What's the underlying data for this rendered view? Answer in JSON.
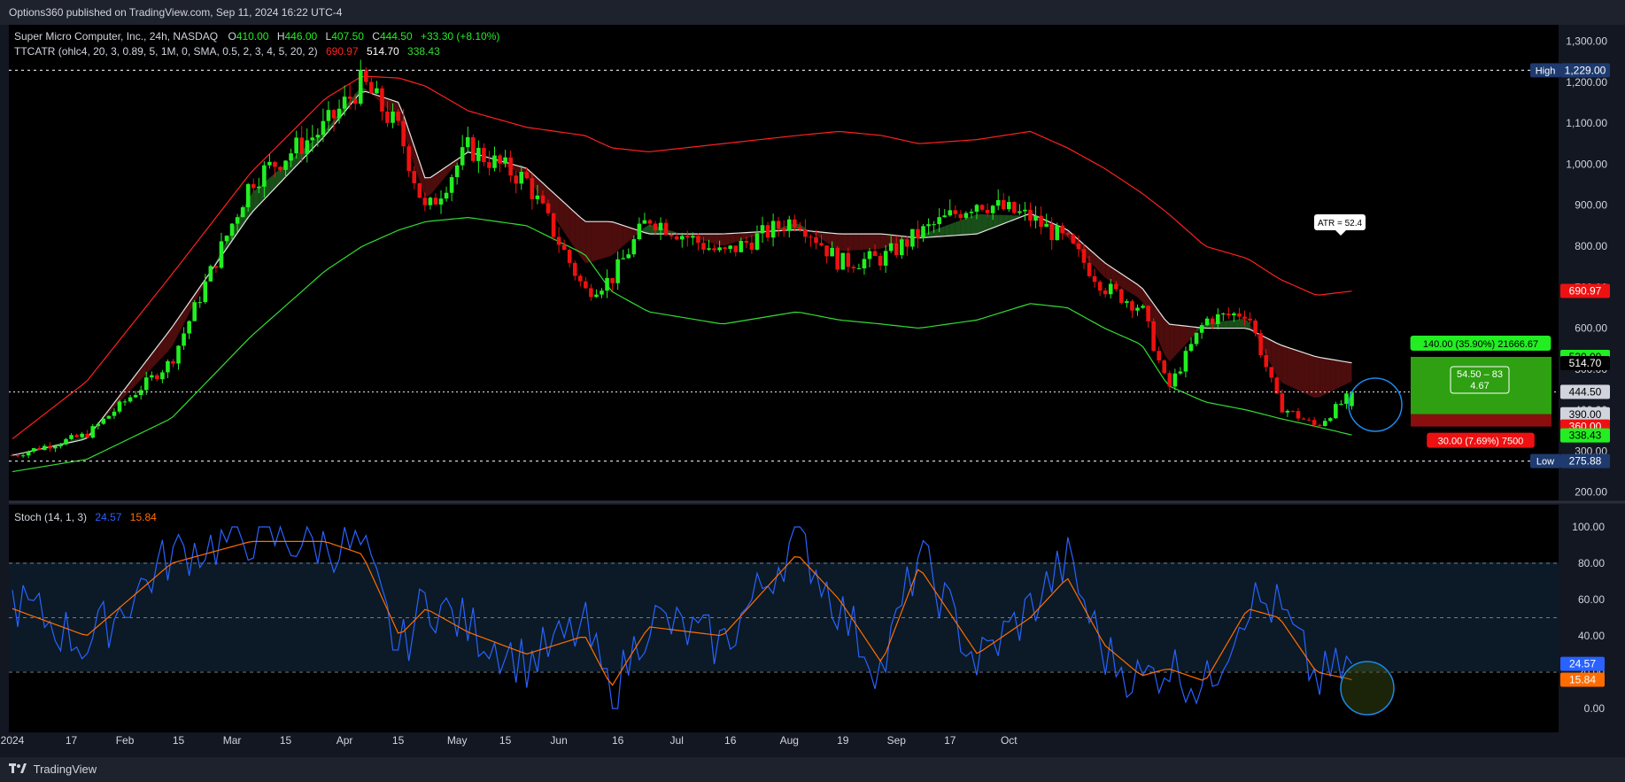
{
  "header": {
    "published_by": "Options360 published on TradingView.com, Sep 11, 2024 16:22 UTC-4"
  },
  "footer": {
    "brand": "TradingView"
  },
  "colors": {
    "up": "#22ee22",
    "down": "#ee1111",
    "upper_band": "#ff2020",
    "middle_line": "#e6e6e6",
    "lower_band": "#33dd33",
    "stoch_k": "#2962ff",
    "stoch_d": "#ff6d00",
    "bg": "#000000",
    "axis_bg": "#131722",
    "text": "#d1d4dc"
  },
  "legend": {
    "symbol": "Super Micro Computer, Inc., 24h, NASDAQ",
    "o_label": "O",
    "o": "410.00",
    "h_label": "H",
    "h": "446.00",
    "l_label": "L",
    "l": "407.50",
    "c_label": "C",
    "c": "444.50",
    "change": "+33.30 (+8.10%)",
    "indicator": "TTCATR (ohlc4, 20, 3, 0.89, 5, 1M, 0, SMA, 0.5, 2, 3, 4, 5, 20, 2)",
    "ind_v1": "690.97",
    "ind_v2": "514.70",
    "ind_v3": "338.43",
    "stoch": "Stoch (14, 1, 3)",
    "stoch_k": "24.57",
    "stoch_d": "15.84"
  },
  "price_axis": {
    "ticks": [
      "1,300.00",
      "1,200.00",
      "1,100.00",
      "1,000.00",
      "900.00",
      "800.00",
      "700.00",
      "600.00",
      "500.00",
      "400.00",
      "300.00",
      "200.00"
    ],
    "tick_values": [
      1300,
      1200,
      1100,
      1000,
      900,
      800,
      700,
      600,
      500,
      400,
      300,
      200
    ],
    "high_label": "High",
    "high_value": "1,229.00",
    "low_label": "Low",
    "low_value": "275.88",
    "tag_upper": "690.97",
    "tag_target": "530.00",
    "tag_mid": "514.70",
    "tag_last": "444.50",
    "tag_entry": "390.00",
    "tag_stop": "360.00",
    "tag_lower": "338.43"
  },
  "stoch_axis": {
    "ticks": [
      "100.00",
      "80.00",
      "60.00",
      "40.00",
      "20.00",
      "0.00"
    ],
    "tick_values": [
      100,
      80,
      60,
      40,
      20,
      0
    ],
    "tag_k": "24.57",
    "tag_d": "15.84"
  },
  "time_axis": {
    "labels": [
      "2024",
      "17",
      "Feb",
      "15",
      "Mar",
      "15",
      "Apr",
      "15",
      "May",
      "15",
      "Jun",
      "16",
      "Jul",
      "16",
      "Aug",
      "19",
      "Sep",
      "17",
      "Oct"
    ],
    "bar_index": [
      0,
      11,
      21,
      31,
      41,
      51,
      62,
      72,
      83,
      92,
      102,
      113,
      124,
      134,
      145,
      155,
      165,
      175,
      186
    ]
  },
  "annotations": {
    "atr": "ATR = 52.4",
    "target": "140.00 (35.90%) 21666.67",
    "stop": "30.00 (7.69%) 7500",
    "ratio_line1": "54.50 – 83",
    "ratio_line2": "4.67"
  },
  "position": {
    "entry": 390,
    "target": 530,
    "stop": 360
  },
  "chart_data": {
    "type": "candlestick",
    "title": "Super Micro Computer, Inc., 24h, NASDAQ",
    "x_start": "2024-01-02",
    "x_end": "2024-09-11",
    "ylim": [
      180,
      1340
    ],
    "y_scale": "linear",
    "series": [
      {
        "name": "price_close",
        "x": [
          "2024-01-02",
          "2024-01-16",
          "2024-02-01",
          "2024-02-16",
          "2024-03-01",
          "2024-03-08",
          "2024-03-15",
          "2024-03-20",
          "2024-03-28",
          "2024-04-08",
          "2024-04-19",
          "2024-04-24",
          "2024-05-01",
          "2024-05-15",
          "2024-05-29",
          "2024-06-06",
          "2024-06-14",
          "2024-06-21",
          "2024-07-02",
          "2024-07-12",
          "2024-07-19",
          "2024-07-26",
          "2024-08-02",
          "2024-08-07",
          "2024-08-14",
          "2024-08-22",
          "2024-08-28",
          "2024-09-04",
          "2024-09-11"
        ],
        "values": [
          290,
          340,
          520,
          960,
          1090,
          1200,
          1080,
          880,
          1040,
          960,
          690,
          720,
          870,
          780,
          870,
          760,
          770,
          830,
          910,
          870,
          810,
          700,
          650,
          450,
          620,
          640,
          410,
          360,
          444.5
        ]
      },
      {
        "name": "band_upper",
        "values": [
          330,
          470,
          730,
          980,
          1160,
          1215,
          1210,
          1190,
          1130,
          1090,
          1070,
          1040,
          1030,
          1050,
          1070,
          1080,
          1070,
          1050,
          1060,
          1080,
          1040,
          990,
          930,
          880,
          800,
          770,
          720,
          680,
          690.97
        ]
      },
      {
        "name": "band_middle",
        "values": [
          290,
          330,
          600,
          880,
          1070,
          1180,
          1150,
          960,
          1030,
          990,
          860,
          860,
          830,
          830,
          840,
          830,
          830,
          820,
          830,
          880,
          840,
          760,
          700,
          610,
          600,
          600,
          560,
          530,
          514.7
        ]
      },
      {
        "name": "band_lower",
        "values": [
          250,
          280,
          380,
          580,
          740,
          800,
          840,
          860,
          870,
          850,
          780,
          690,
          640,
          610,
          640,
          620,
          610,
          600,
          620,
          660,
          650,
          600,
          560,
          460,
          420,
          400,
          380,
          360,
          338.43
        ]
      },
      {
        "name": "stoch_k",
        "values": [
          60,
          35,
          85,
          95,
          90,
          88,
          30,
          60,
          45,
          25,
          45,
          5,
          50,
          35,
          95,
          55,
          20,
          85,
          25,
          55,
          82,
          30,
          15,
          25,
          10,
          60,
          55,
          15,
          24.57
        ]
      },
      {
        "name": "stoch_d",
        "values": [
          55,
          40,
          80,
          92,
          92,
          85,
          40,
          55,
          42,
          30,
          40,
          12,
          45,
          40,
          85,
          60,
          25,
          78,
          30,
          50,
          72,
          35,
          18,
          22,
          15,
          55,
          50,
          20,
          15.84
        ]
      }
    ],
    "stoch_ylim": [
      0,
      100
    ],
    "stoch_levels": [
      80,
      50,
      20
    ],
    "horizontal_lines": [
      {
        "label": "High",
        "value": 1229
      },
      {
        "label": "Low",
        "value": 275.88
      },
      {
        "label": "Last",
        "value": 444.5
      }
    ],
    "grid": false,
    "legend": "top-left"
  }
}
